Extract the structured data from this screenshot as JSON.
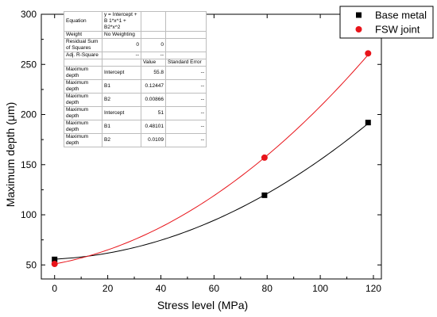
{
  "chart_data": {
    "type": "scatter",
    "xlabel": "Stress level (MPa)",
    "ylabel": "Maximum depth (μm)",
    "xlim": [
      -5,
      123
    ],
    "ylim": [
      36,
      300
    ],
    "xticks": [
      0,
      20,
      40,
      60,
      80,
      100,
      120
    ],
    "yticks": [
      50,
      100,
      150,
      200,
      250,
      300
    ],
    "legend_position": "top-right",
    "series": [
      {
        "name": "Base metal",
        "marker": "square",
        "color": "#000000",
        "x": [
          0,
          79,
          118
        ],
        "y": [
          55.5,
          119.5,
          192
        ],
        "fit": {
          "intercept": 55.8,
          "b1": 0.12447,
          "b2": 0.00866
        }
      },
      {
        "name": "FSW joint",
        "marker": "circle",
        "color": "#e8141a",
        "x": [
          0,
          79,
          118
        ],
        "y": [
          51,
          157,
          261
        ],
        "fit": {
          "intercept": 51,
          "b1": 0.48101,
          "b2": 0.0109
        }
      }
    ]
  },
  "stats_table": {
    "rows": [
      [
        "Equation",
        "y = Intercept + B 1*x^1 + B2*x^2",
        "",
        ""
      ],
      [
        "Weight",
        "No Weighting",
        "",
        ""
      ],
      [
        "Residual Sum of Squares",
        "0",
        "0",
        ""
      ],
      [
        "Adj. R-Square",
        "--",
        "--",
        ""
      ],
      [
        "",
        "",
        "Value",
        "Standard Error"
      ],
      [
        "Maximum depth",
        "Intercept",
        "55.8",
        "--"
      ],
      [
        "Maximum depth",
        "B1",
        "0.12447",
        "--"
      ],
      [
        "Maximum depth",
        "B2",
        "0.00866",
        "--"
      ],
      [
        "Maximum depth",
        "Intercept",
        "51",
        "--"
      ],
      [
        "Maximum depth",
        "B1",
        "0.48101",
        "--"
      ],
      [
        "Maximum depth",
        "B2",
        "0.0109",
        "--"
      ]
    ]
  }
}
